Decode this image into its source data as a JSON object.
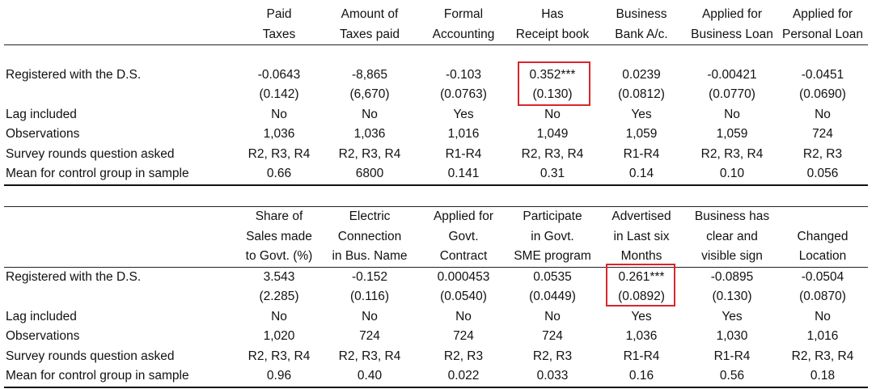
{
  "panel1": {
    "headers": [
      [
        "Paid",
        "Taxes"
      ],
      [
        "Amount of",
        "Taxes paid"
      ],
      [
        "Formal",
        "Accounting"
      ],
      [
        "Has",
        "Receipt book"
      ],
      [
        "Business",
        "Bank A/c."
      ],
      [
        "Applied for",
        "Business Loan"
      ],
      [
        "Applied for",
        "Personal Loan"
      ]
    ],
    "rows": [
      {
        "label": "Registered with the D.S.",
        "values": [
          "-0.0643",
          "-8,865",
          "-0.103",
          "0.352***",
          "0.0239",
          "-0.00421",
          "-0.0451"
        ]
      },
      {
        "label": "",
        "values": [
          "(0.142)",
          "(6,670)",
          "(0.0763)",
          "(0.130)",
          "(0.0812)",
          "(0.0770)",
          "(0.0690)"
        ]
      },
      {
        "label": "Lag included",
        "values": [
          "No",
          "No",
          "Yes",
          "No",
          "Yes",
          "No",
          "No"
        ]
      },
      {
        "label": "Observations",
        "values": [
          "1,036",
          "1,036",
          "1,016",
          "1,049",
          "1,059",
          "1,059",
          "724"
        ]
      },
      {
        "label": "Survey rounds question asked",
        "values": [
          "R2, R3, R4",
          "R2, R3, R4",
          "R1-R4",
          "R2, R3, R4",
          "R1-R4",
          "R2, R3, R4",
          "R2, R3"
        ]
      },
      {
        "label": "Mean for control group in sample",
        "values": [
          "0.66",
          "6800",
          "0.141",
          "0.31",
          "0.14",
          "0.10",
          "0.056"
        ]
      }
    ]
  },
  "panel2": {
    "headers": [
      [
        "Share of",
        "Sales made",
        "to Govt. (%)"
      ],
      [
        "Electric",
        "Connection",
        "in Bus. Name"
      ],
      [
        "Applied for",
        "Govt.",
        "Contract"
      ],
      [
        "Participate",
        "in Govt.",
        "SME program"
      ],
      [
        "Advertised",
        "in Last six",
        "Months"
      ],
      [
        "Business has",
        "clear and",
        "visible sign"
      ],
      [
        "",
        "Changed",
        "Location"
      ]
    ],
    "rows": [
      {
        "label": "Registered with the D.S.",
        "values": [
          "3.543",
          "-0.152",
          "0.000453",
          "0.0535",
          "0.261***",
          "-0.0895",
          "-0.0504"
        ]
      },
      {
        "label": "",
        "values": [
          "(2.285)",
          "(0.116)",
          "(0.0540)",
          "(0.0449)",
          "(0.0892)",
          "(0.130)",
          "(0.0870)"
        ]
      },
      {
        "label": "Lag included",
        "values": [
          "No",
          "No",
          "No",
          "No",
          "Yes",
          "Yes",
          "No"
        ]
      },
      {
        "label": "Observations",
        "values": [
          "1,020",
          "724",
          "724",
          "724",
          "1,036",
          "1,030",
          "1,016"
        ]
      },
      {
        "label": "Survey rounds question asked",
        "values": [
          "R2, R3, R4",
          "R2, R3, R4",
          "R2, R3",
          "R2, R3",
          "R1-R4",
          "R1-R4",
          "R2, R3, R4"
        ]
      },
      {
        "label": "Mean for control group in sample",
        "values": [
          "0.96",
          "0.40",
          "0.022",
          "0.033",
          "0.16",
          "0.56",
          "0.18"
        ]
      }
    ]
  },
  "highlight_color": "#d9262c"
}
